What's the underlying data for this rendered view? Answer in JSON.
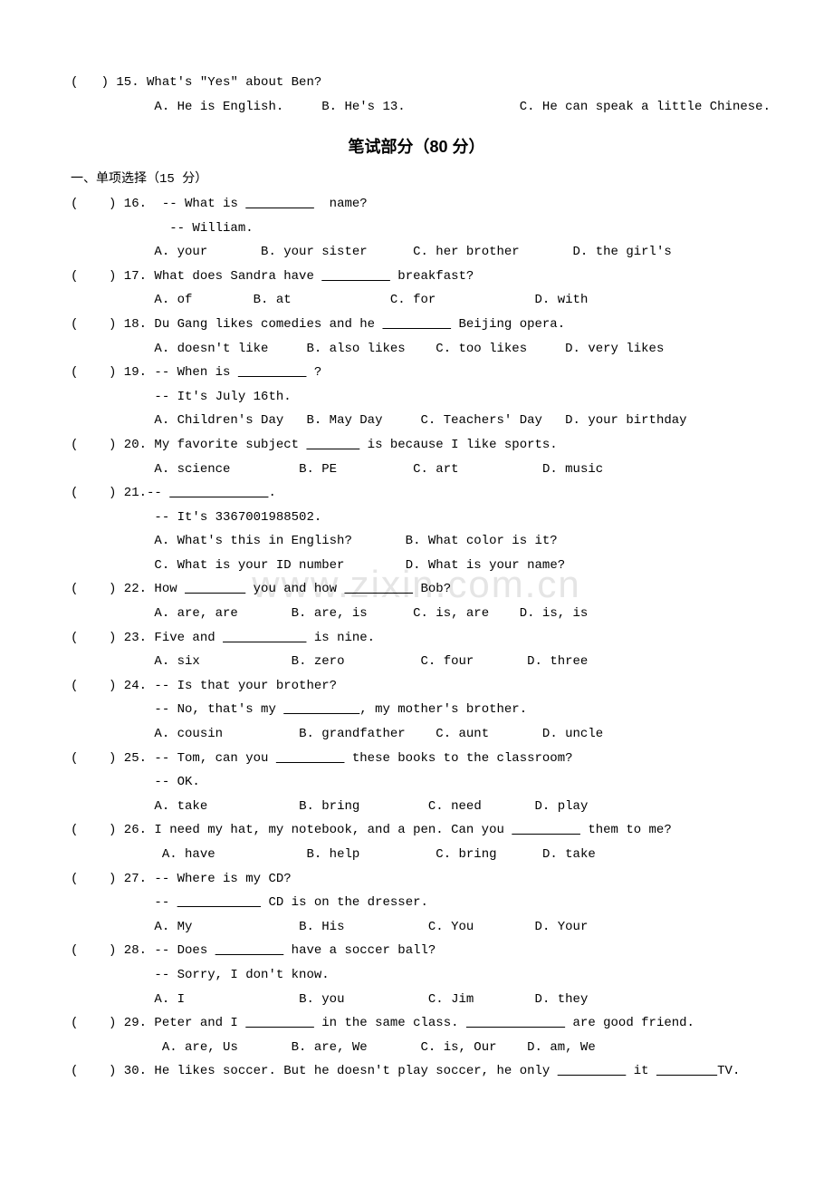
{
  "watermark": "www.zixin.com.cn",
  "q15": {
    "num": "(   ) 15.",
    "stem": "What's \"Yes\" about Ben?",
    "optA": "A. He is English.",
    "optB": "B. He's 13.",
    "optC": "C. He can speak a little Chinese."
  },
  "section_title": "笔试部分（80 分）",
  "subsection_label": "一、单项选择（15 分）",
  "q16": {
    "num": "(    ) 16.",
    "stem1": "-- What is ",
    "blank": "         ",
    "stem2": "  name?",
    "line2": "-- William.",
    "optA": "A. your",
    "optB": "B. your sister",
    "optC": "C. her brother",
    "optD": "D. the girl's"
  },
  "q17": {
    "num": "(    ) 17.",
    "stem1": "What does Sandra have ",
    "blank": "         ",
    "stem2": " breakfast?",
    "optA": "A. of",
    "optB": "B. at",
    "optC": "C. for",
    "optD": "D. with"
  },
  "q18": {
    "num": "(    ) 18.",
    "stem1": "Du Gang likes comedies and he ",
    "blank": "         ",
    "stem2": " Beijing opera.",
    "optA": "A. doesn't like",
    "optB": "B. also likes",
    "optC": "C. too likes",
    "optD": "D. very likes"
  },
  "q19": {
    "num": "(    ) 19.",
    "stem1": "-- When is ",
    "blank": "         ",
    "stem2": " ?",
    "line2": "-- It's July 16th.",
    "optA": "A. Children's Day",
    "optB": "B. May Day",
    "optC": "C. Teachers' Day",
    "optD": "D. your birthday"
  },
  "q20": {
    "num": "(    ) 20.",
    "stem1": "My favorite subject ",
    "blank": "       ",
    "stem2": " is because I like sports.",
    "optA": "A. science",
    "optB": "B. PE",
    "optC": "C. art",
    "optD": "D. music"
  },
  "q21": {
    "num": "(    ) 21.",
    "stem1": "-- ",
    "blank": "             ",
    "stem2": ".",
    "line2": "-- It's 3367001988502.",
    "optA": "A. What's this in English?",
    "optB": "B. What color is it?",
    "optC": "C. What is your ID number",
    "optD": "D. What is your name?"
  },
  "q22": {
    "num": "(    ) 22.",
    "stem1": "How ",
    "blank1": "        ",
    "stem2": " you and how ",
    "blank2": "         ",
    "stem3": " Bob?",
    "optA": "A. are, are",
    "optB": "B. are, is",
    "optC": "C. is, are",
    "optD": "D. is, is"
  },
  "q23": {
    "num": "(    ) 23.",
    "stem1": "Five and ",
    "blank": "           ",
    "stem2": " is nine.",
    "optA": "A. six",
    "optB": "B. zero",
    "optC": "C. four",
    "optD": "D. three"
  },
  "q24": {
    "num": "(    ) 24.",
    "stem": "-- Is that your brother?",
    "line2a": "-- No, that's my ",
    "blank": "          ",
    "line2b": ", my mother's brother.",
    "optA": "A. cousin",
    "optB": "B. grandfather",
    "optC": "C. aunt",
    "optD": "D. uncle"
  },
  "q25": {
    "num": "(    ) 25.",
    "stem1": "-- Tom, can you ",
    "blank": "         ",
    "stem2": " these books to the classroom?",
    "line2": "-- OK.",
    "optA": "A. take",
    "optB": "B. bring",
    "optC": "C. need",
    "optD": "D. play"
  },
  "q26": {
    "num": "(    ) 26.",
    "stem1": "I need my hat, my notebook, and a pen. Can you ",
    "blank": "         ",
    "stem2": " them to me?",
    "optA": "A. have",
    "optB": "B. help",
    "optC": "C. bring",
    "optD": "D. take"
  },
  "q27": {
    "num": "(    ) 27.",
    "stem": "-- Where is my CD?",
    "line2a": "-- ",
    "blank": "           ",
    "line2b": " CD is on the dresser.",
    "optA": "A. My",
    "optB": "B. His",
    "optC": "C. You",
    "optD": "D. Your"
  },
  "q28": {
    "num": "(    ) 28.",
    "stem1": "-- Does ",
    "blank": "         ",
    "stem2": " have a soccer ball?",
    "line2": "-- Sorry, I don't know.",
    "optA": "A. I",
    "optB": "B. you",
    "optC": "C. Jim",
    "optD": "D. they"
  },
  "q29": {
    "num": "(    ) 29.",
    "stem1": "Peter and I ",
    "blank1": "         ",
    "stem2": " in the same class. ",
    "blank2": "             ",
    "stem3": " are good friend.",
    "optA": "A. are, Us",
    "optB": "B. are, We",
    "optC": "C. is, Our",
    "optD": "D. am, We"
  },
  "q30": {
    "num": "(    ) 30.",
    "stem1": "He likes soccer. But he doesn't play soccer, he only ",
    "blank1": "         ",
    "stem2": " it ",
    "blank2": "        ",
    "stem3": "TV."
  }
}
